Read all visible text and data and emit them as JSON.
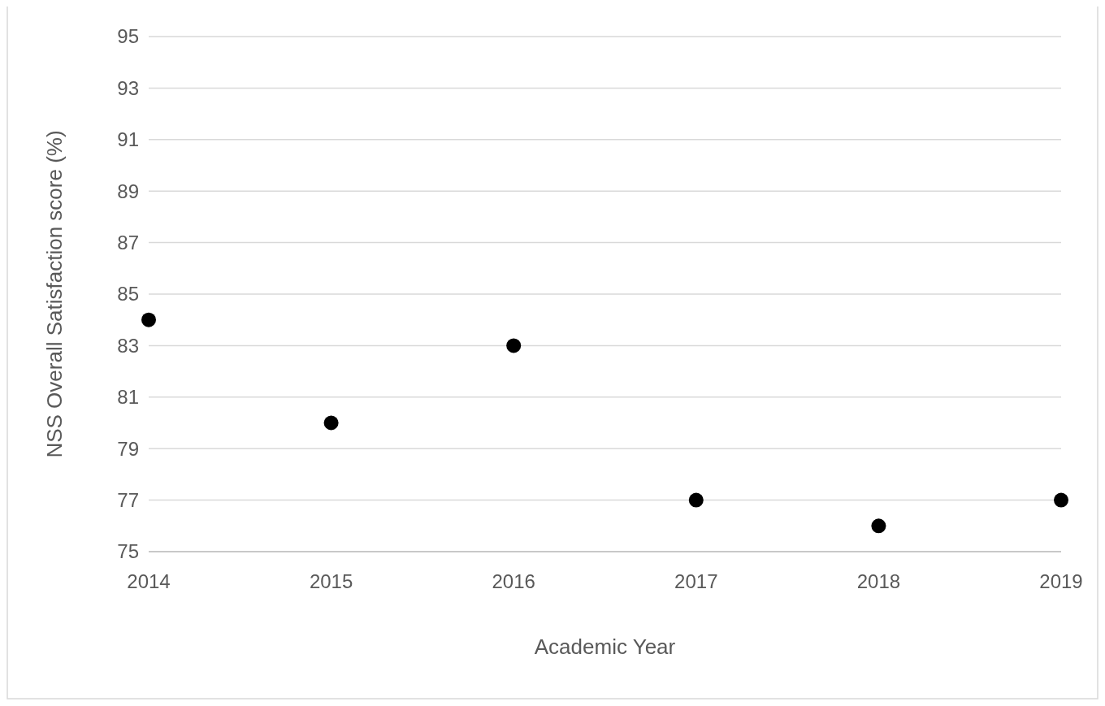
{
  "chart_data": {
    "type": "scatter",
    "xlabel": "Academic Year",
    "ylabel": "NSS Overall Satisfaction score (%)",
    "x": [
      2014,
      2015,
      2016,
      2017,
      2018,
      2019
    ],
    "series": [
      {
        "color": "#000000",
        "values": [
          84,
          80,
          83,
          77,
          76,
          77
        ]
      }
    ],
    "xlim": [
      2014,
      2019
    ],
    "xticks": [
      2014,
      2015,
      2016,
      2017,
      2018,
      2019
    ],
    "ylim": [
      75,
      95
    ],
    "yticks": [
      75,
      77,
      79,
      81,
      83,
      85,
      87,
      89,
      91,
      93,
      95
    ],
    "grid": "y",
    "marker": "circle"
  }
}
